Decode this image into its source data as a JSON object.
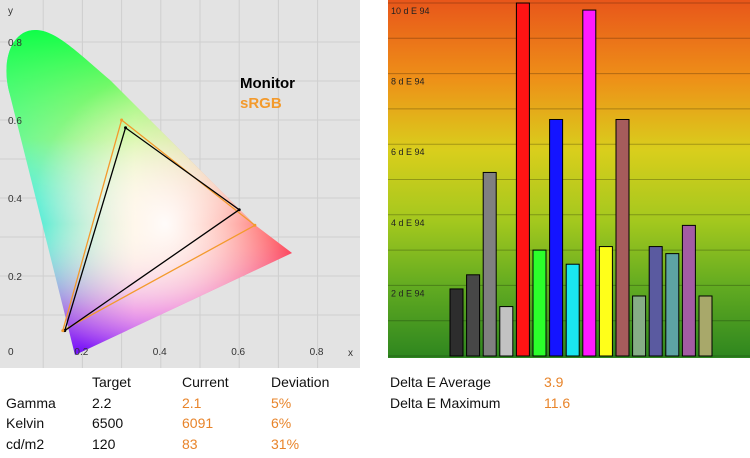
{
  "cie_chart": {
    "y_axis_label": "y",
    "x_axis_label": "x",
    "x_ticks": [
      "0",
      "0.2",
      "0.4",
      "0.6",
      "0.8"
    ],
    "y_ticks": [
      "0.2",
      "0.4",
      "0.6",
      "0.8"
    ],
    "legend": [
      {
        "label": "Monitor",
        "color": "#000000"
      },
      {
        "label": "sRGB",
        "color": "#f39a2c"
      }
    ]
  },
  "chart_data": [
    {
      "type": "scatter",
      "xlim": [
        0,
        0.9
      ],
      "ylim": [
        0,
        0.9
      ],
      "grid": true,
      "legend_position": "top-right",
      "series": [
        {
          "name": "Monitor",
          "color": "#000000",
          "points": [
            [
              0.31,
              0.58
            ],
            [
              0.6,
              0.37
            ],
            [
              0.155,
              0.06
            ]
          ]
        },
        {
          "name": "sRGB",
          "color": "#f39a2c",
          "points": [
            [
              0.3,
              0.6
            ],
            [
              0.64,
              0.33
            ],
            [
              0.15,
              0.06
            ]
          ]
        }
      ]
    },
    {
      "type": "bar",
      "ylim": [
        0,
        10
      ],
      "ytick_labels": [
        "2 d E 94",
        "4 d E 94",
        "6 d E 94",
        "8 d E 94",
        "10 d E 94"
      ],
      "grid": true,
      "values": [
        1.9,
        2.3,
        5.2,
        1.4,
        10.0,
        3.0,
        6.7,
        2.6,
        9.8,
        3.1,
        6.7,
        1.7,
        3.1,
        2.9,
        3.7,
        1.7
      ],
      "colors": [
        "#2d2d2d",
        "#474747",
        "#808080",
        "#c2c2c2",
        "#ff1414",
        "#2bff2b",
        "#1414ff",
        "#1ae6f0",
        "#ff1aff",
        "#ffff1a",
        "#a65c5c",
        "#86ad86",
        "#5a5aa0",
        "#5da3a3",
        "#a35ca3",
        "#a8a86a"
      ]
    }
  ],
  "stats": {
    "headers": [
      "",
      "Target",
      "Current",
      "Deviation"
    ],
    "rows": [
      {
        "label": "Gamma",
        "target": "2.2",
        "current": "2.1",
        "deviation": "5%"
      },
      {
        "label": "Kelvin",
        "target": "6500",
        "current": "6091",
        "deviation": "6%"
      },
      {
        "label": "cd/m2",
        "target": "120",
        "current": "83",
        "deviation": "31%"
      }
    ]
  },
  "delta_e": {
    "average_label": "Delta E Average",
    "average_value": "3.9",
    "maximum_label": "Delta E Maximum",
    "maximum_value": "11.6"
  }
}
